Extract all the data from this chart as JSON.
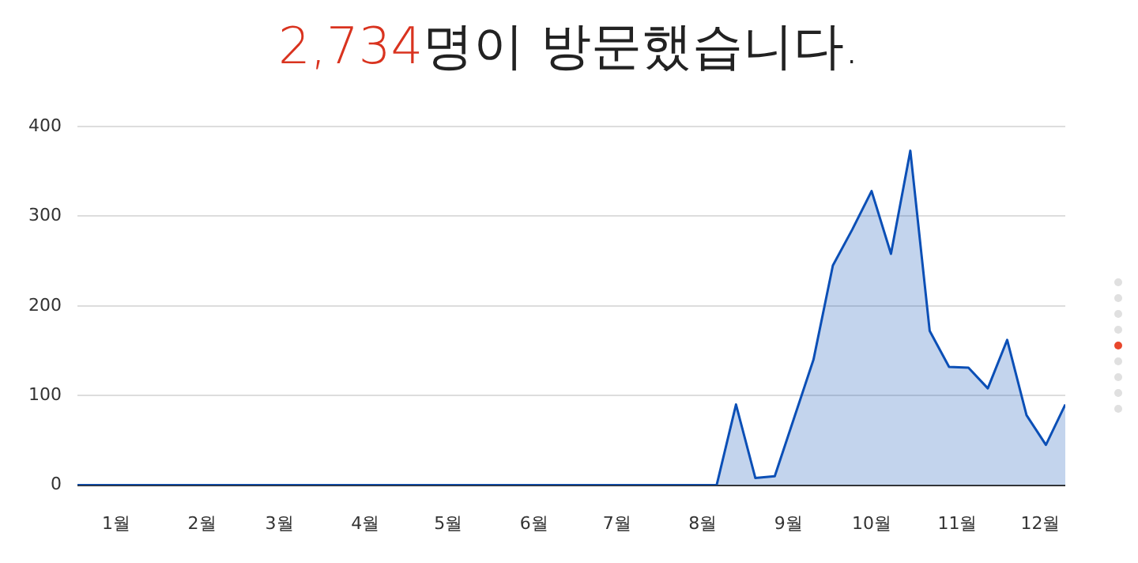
{
  "chart_data": {
    "type": "area",
    "title": "2,734명이 방문했습니다.",
    "x": [
      "--01-01",
      "--01-08",
      "--01-15",
      "--01-22",
      "--01-29",
      "--02-05",
      "--02-12",
      "--02-19",
      "--02-26",
      "--03-05",
      "--03-12",
      "--03-19",
      "--03-26",
      "--04-02",
      "--04-09",
      "--04-16",
      "--04-23",
      "--04-30",
      "--05-07",
      "--05-14",
      "--05-21",
      "--05-28",
      "--06-04",
      "--06-11",
      "--06-18",
      "--06-25",
      "--07-02",
      "--07-09",
      "--07-16",
      "--07-23",
      "--07-30",
      "--08-06",
      "--08-13",
      "--08-20",
      "--08-27",
      "--09-03",
      "--09-10",
      "--09-17",
      "--09-24",
      "--10-01",
      "--10-08",
      "--10-15",
      "--10-22",
      "--10-29",
      "--11-05",
      "--11-12",
      "--11-19",
      "--11-26",
      "--12-03",
      "--12-10",
      "--12-17",
      "--12-24"
    ],
    "series": [
      {
        "color": "#0b4fb6",
        "values": [
          0,
          0,
          0,
          0,
          0,
          0,
          0,
          0,
          0,
          0,
          0,
          0,
          0,
          0,
          0,
          0,
          0,
          0,
          0,
          0,
          0,
          0,
          0,
          0,
          0,
          0,
          0,
          0,
          0,
          0,
          0,
          0,
          0,
          0,
          90,
          8,
          10,
          75,
          140,
          245,
          285,
          328,
          258,
          373,
          172,
          132,
          131,
          108,
          162,
          78,
          45,
          90
        ]
      }
    ],
    "xlim": [
      "--01-01",
      "--12-24"
    ],
    "xticks": [
      {
        "value": "--01-15",
        "label": "1월"
      },
      {
        "value": "--02-15",
        "label": "2월"
      },
      {
        "value": "--03-15",
        "label": "3월"
      },
      {
        "value": "--04-15",
        "label": "4월"
      },
      {
        "value": "--05-15",
        "label": "5월"
      },
      {
        "value": "--06-15",
        "label": "6월"
      },
      {
        "value": "--07-15",
        "label": "7월"
      },
      {
        "value": "--08-15",
        "label": "8월"
      },
      {
        "value": "--09-15",
        "label": "9월"
      },
      {
        "value": "--10-15",
        "label": "10월"
      },
      {
        "value": "--11-15",
        "label": "11월"
      },
      {
        "value": "--12-15",
        "label": "12월"
      }
    ],
    "ylim": [
      0,
      400
    ],
    "yticks": [
      0,
      100,
      200,
      300,
      400
    ],
    "grid": "y",
    "legend": false,
    "marker": "none"
  }
}
